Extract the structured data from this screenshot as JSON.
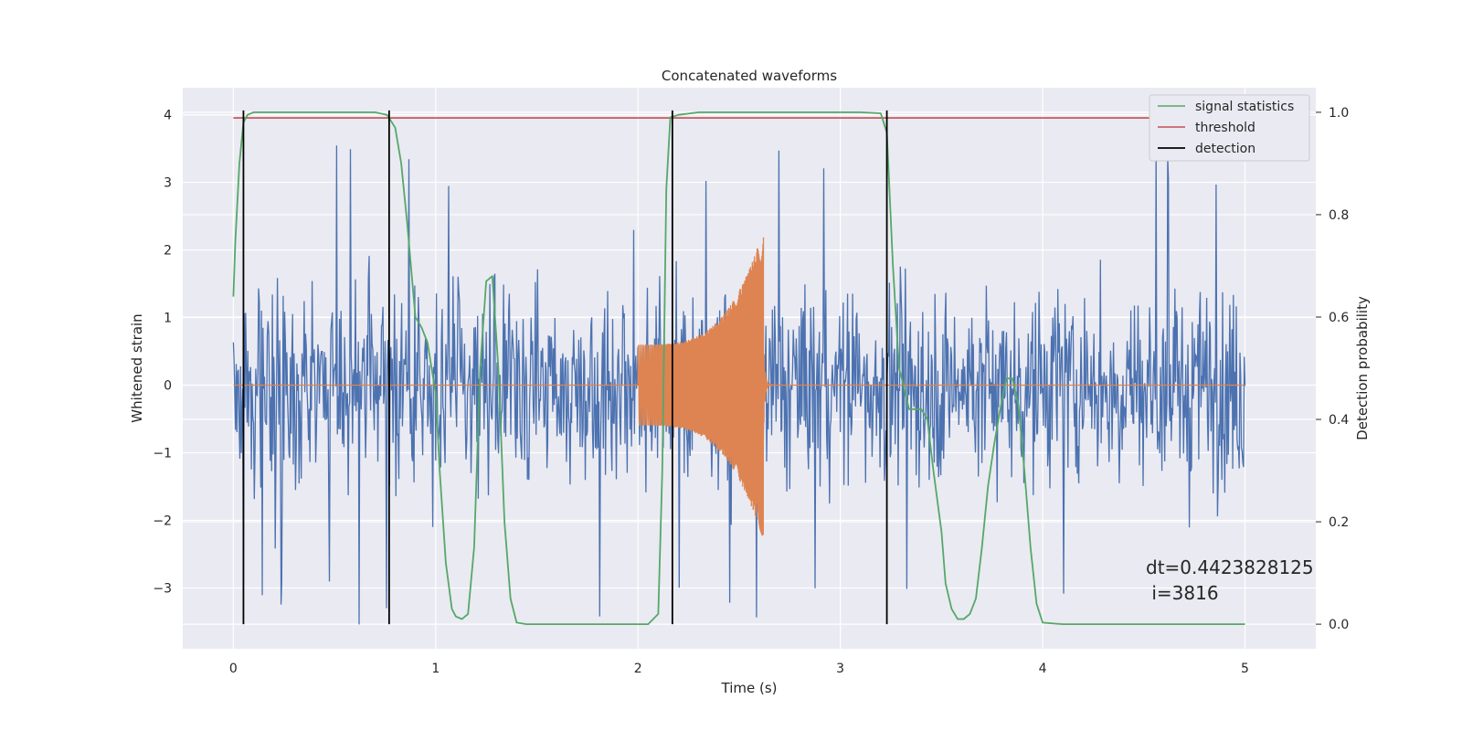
{
  "chart_data": {
    "type": "line",
    "title": "Concatenated waveforms",
    "xlabel": "Time (s)",
    "ylabel": "Whitened strain",
    "y2label": "Detection probability",
    "xlim": [
      -0.25,
      5.35
    ],
    "ylim": [
      -3.9,
      4.4
    ],
    "y2lim": [
      -0.048,
      1.048
    ],
    "x_ticks": [
      0,
      1,
      2,
      3,
      4,
      5
    ],
    "y_ticks": [
      -3,
      -2,
      -1,
      0,
      1,
      2,
      3,
      4
    ],
    "y2_ticks": [
      0.0,
      0.2,
      0.4,
      0.6,
      0.8,
      1.0
    ],
    "grid": true,
    "legend_position": "top-right",
    "colors": {
      "strain": "#4c72b0",
      "template": "#dd8452",
      "signal": "#55a868",
      "threshold": "#c44e52",
      "detection": "#000000",
      "background": "#eaeaf2"
    },
    "series": [
      {
        "name": "",
        "axis": "left",
        "kind": "noise",
        "x_range": [
          0,
          5
        ],
        "typical_amplitude": 1.4,
        "peak_amplitude": 3.6
      },
      {
        "name": "",
        "axis": "left",
        "kind": "chirp",
        "start_time": 2.0,
        "end_time": 2.62,
        "start_amplitude": 0.6,
        "peak_amplitude": 2.3,
        "min_amplitude": -2.3
      },
      {
        "name": "signal statistics",
        "axis": "right",
        "x": [
          0,
          0.01,
          0.03,
          0.05,
          0.07,
          0.1,
          0.3,
          0.7,
          0.76,
          0.8,
          0.83,
          0.86,
          0.9,
          0.93,
          0.96,
          1.0,
          1.02,
          1.05,
          1.08,
          1.1,
          1.13,
          1.16,
          1.19,
          1.22,
          1.25,
          1.28,
          1.31,
          1.34,
          1.37,
          1.4,
          1.45,
          1.6,
          2.05,
          2.1,
          2.12,
          2.14,
          2.16,
          2.2,
          2.3,
          3.1,
          3.2,
          3.23,
          3.26,
          3.29,
          3.31,
          3.34,
          3.37,
          3.4,
          3.43,
          3.46,
          3.5,
          3.52,
          3.55,
          3.58,
          3.61,
          3.64,
          3.67,
          3.7,
          3.73,
          3.76,
          3.79,
          3.82,
          3.85,
          3.88,
          3.91,
          3.94,
          3.97,
          4.0,
          4.1,
          5.0
        ],
        "y": [
          0.64,
          0.75,
          0.9,
          0.98,
          0.995,
          1.0,
          1.0,
          1.0,
          0.995,
          0.97,
          0.9,
          0.78,
          0.6,
          0.58,
          0.55,
          0.45,
          0.3,
          0.12,
          0.03,
          0.015,
          0.01,
          0.02,
          0.15,
          0.5,
          0.67,
          0.68,
          0.5,
          0.2,
          0.05,
          0.003,
          0.0,
          0.0,
          0.0,
          0.02,
          0.3,
          0.85,
          0.99,
          0.995,
          1.0,
          1.0,
          0.998,
          0.96,
          0.7,
          0.5,
          0.47,
          0.42,
          0.42,
          0.42,
          0.4,
          0.3,
          0.18,
          0.08,
          0.03,
          0.01,
          0.01,
          0.02,
          0.05,
          0.15,
          0.27,
          0.35,
          0.42,
          0.48,
          0.48,
          0.43,
          0.3,
          0.15,
          0.04,
          0.003,
          0.0,
          0.0
        ]
      },
      {
        "name": "threshold",
        "axis": "right",
        "x": [
          0,
          5
        ],
        "y": [
          0.989,
          0.989
        ]
      },
      {
        "name": "detection",
        "axis": "right",
        "kind": "vertical_lines",
        "x": [
          0.05,
          0.77,
          2.17,
          3.23
        ],
        "ymin": 0.0,
        "ymax": 1.0
      }
    ],
    "annotation": {
      "line1": "dt=0.4423828125",
      "line2": " i=3816",
      "x": 4.52,
      "y": -2.8
    }
  }
}
